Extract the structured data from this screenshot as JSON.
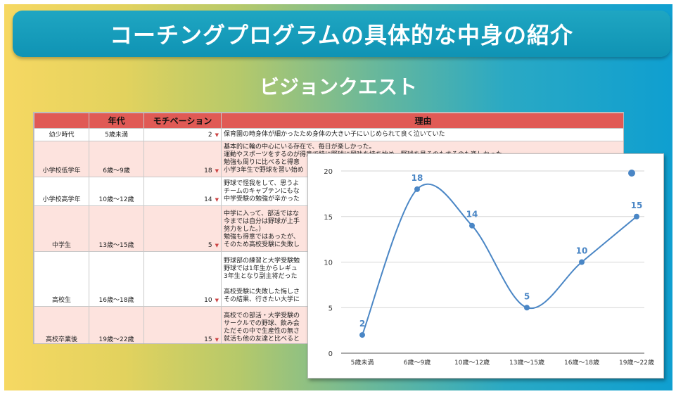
{
  "slide": {
    "title": "コーチングプログラムの具体的な中身の紹介",
    "subtitle": "ビジョンクエスト"
  },
  "table": {
    "headers": [
      "",
      "年代",
      "モチベーション",
      "理由"
    ],
    "rows": [
      {
        "period": "幼少時代",
        "age": "5歳未満",
        "motivation": "2",
        "reason": [
          "保育園の時身体が細かったため身体の大きい子にいじめられて良く泣いていた"
        ]
      },
      {
        "period": "小学校低学年",
        "age": "6歳〜9歳",
        "motivation": "18",
        "reason": [
          "基本的に輪の中心にいる存在で、毎日が楽しかった。",
          "運動やスポーツをするのが得意で特に野球に興味を持ち始め、野球を見るのもするのも楽しかった。",
          "勉強も周りに比べると得意",
          "小学3年生で野球を習い始め"
        ]
      },
      {
        "period": "小学校高学年",
        "age": "10歳〜12歳",
        "motivation": "14",
        "reason": [
          "野球で怪我をして、思うよ",
          "チームのキャプテンにもな",
          "中学受験の勉強が辛かった"
        ]
      },
      {
        "period": "中学生",
        "age": "13歳〜15歳",
        "motivation": "5",
        "reason": [
          "中学に入って、部活ではな",
          "今までは自分は野球が上手",
          "努力をした。）",
          "勉強も得意ではあったが、",
          "そのため高校受験に失敗し"
        ]
      },
      {
        "period": "高校生",
        "age": "16歳〜18歳",
        "motivation": "10",
        "reason": [
          "野球部の練習と大学受験勉",
          "野球では1年生からレギュ",
          "3年生となり副主将だった",
          "",
          "高校受験に失敗した悔しさ",
          "その結果、行きたい大学に"
        ]
      },
      {
        "period": "高校卒業後",
        "age": "19歳〜22歳",
        "motivation": "15",
        "reason": [
          "高校での部活・大学受験の",
          "サークルでの野球、飲み会",
          "ただその中で生産性の無さ",
          "就活も他の友達と比べると"
        ]
      }
    ]
  },
  "chart_data": {
    "type": "line",
    "categories": [
      "5歳未満",
      "6歳〜9歳",
      "10歳〜12歳",
      "13歳〜15歳",
      "16歳〜18歳",
      "19歳〜22歳"
    ],
    "series": [
      {
        "values": [
          2,
          18,
          14,
          5,
          10,
          15
        ]
      }
    ],
    "yticks": [
      "0",
      "5",
      "10",
      "15",
      "20"
    ],
    "ylim": [
      0,
      20
    ],
    "grid": true,
    "smooth": true,
    "data_labels": true,
    "legend": "top-right",
    "color": "#4a86c5"
  }
}
